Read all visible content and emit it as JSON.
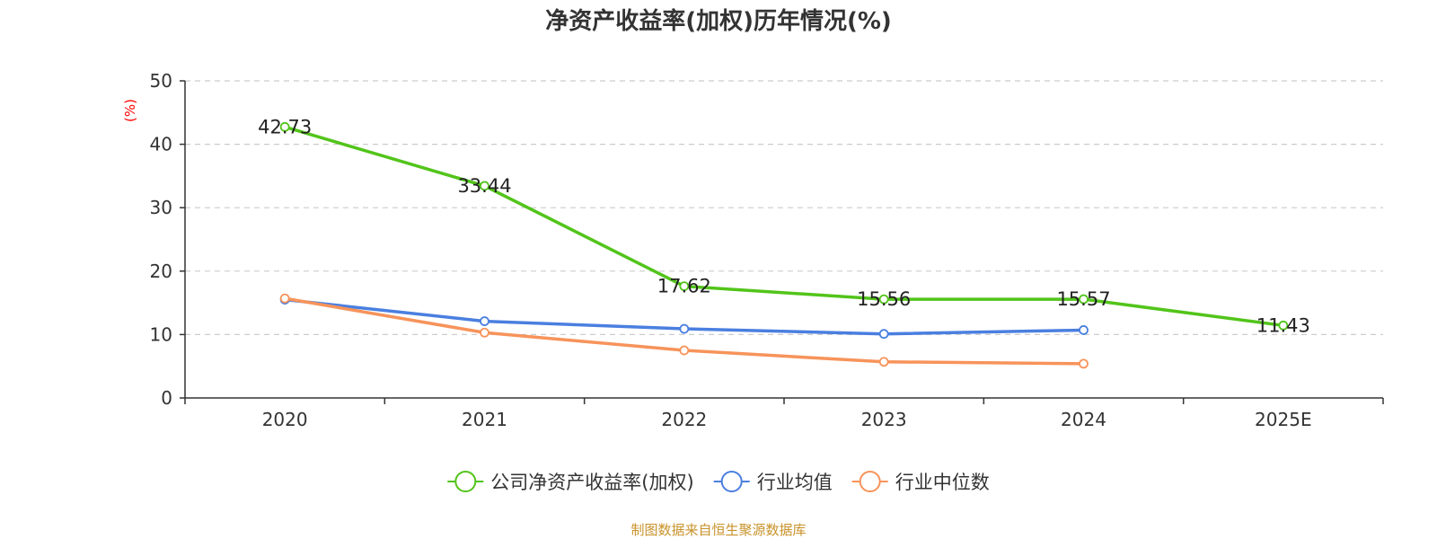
{
  "chart_data": {
    "type": "line",
    "title": "净资产收益率(加权)历年情况(%)",
    "ylabel": "(%)",
    "xlabel": "",
    "categories": [
      "2020",
      "2021",
      "2022",
      "2023",
      "2024",
      "2025E"
    ],
    "ylim": [
      0,
      50
    ],
    "yticks": [
      0,
      10,
      20,
      30,
      40,
      50
    ],
    "grid": true,
    "legend_position": "bottom",
    "series": [
      {
        "name": "公司净资产收益率(加权)",
        "color": "#52c41a",
        "values": [
          42.73,
          33.44,
          17.62,
          15.56,
          15.57,
          11.43
        ],
        "labels": [
          "42.73",
          "33.44",
          "17.62",
          "15.56",
          "15.57",
          "11.43"
        ]
      },
      {
        "name": "行业均值",
        "color": "#4a7fe0",
        "values": [
          15.5,
          12.1,
          10.9,
          10.1,
          10.7,
          null
        ]
      },
      {
        "name": "行业中位数",
        "color": "#f7935a",
        "values": [
          15.7,
          10.3,
          7.5,
          5.7,
          5.4,
          null
        ]
      }
    ],
    "ylabel_color": "#ff0000",
    "source": "制图数据来自恒生聚源数据库",
    "source_color": "#c8922a"
  }
}
